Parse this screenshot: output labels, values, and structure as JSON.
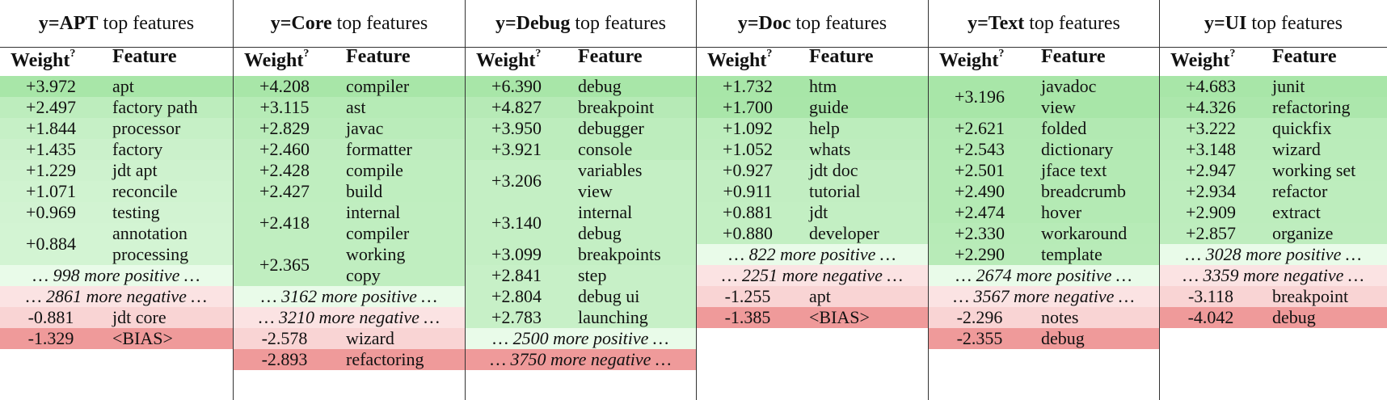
{
  "colors": {
    "pos_strong": "#a8e6a8",
    "pos_light": "#e9fbe9",
    "neg_light": "#fbe3e3",
    "neg_strong": "#ef9a9a"
  },
  "panels": [
    {
      "title_bold": "y=APT",
      "title_rest": " top features",
      "weight_header": "Weight",
      "weight_header_sup": "?",
      "feature_header": "Feature",
      "rows": [
        {
          "weight": "+3.972",
          "feature": [
            "apt"
          ]
        },
        {
          "weight": "+2.497",
          "feature": [
            "factory path"
          ]
        },
        {
          "weight": "+1.844",
          "feature": [
            "processor"
          ]
        },
        {
          "weight": "+1.435",
          "feature": [
            "factory"
          ]
        },
        {
          "weight": "+1.229",
          "feature": [
            "jdt apt"
          ]
        },
        {
          "weight": "+1.071",
          "feature": [
            "reconcile"
          ]
        },
        {
          "weight": "+0.969",
          "feature": [
            "testing"
          ]
        },
        {
          "weight": "+0.884",
          "feature": [
            "annotation",
            "processing"
          ]
        },
        {
          "more": "… 998 more positive …"
        },
        {
          "more": "… 2861 more negative …"
        },
        {
          "weight": "-0.881",
          "feature": [
            "jdt core"
          ]
        },
        {
          "weight": "-1.329",
          "feature": [
            "<BIAS>"
          ]
        }
      ]
    },
    {
      "title_bold": "y=Core",
      "title_rest": " top features",
      "weight_header": "Weight",
      "weight_header_sup": "?",
      "feature_header": "Feature",
      "rows": [
        {
          "weight": "+4.208",
          "feature": [
            "compiler"
          ]
        },
        {
          "weight": "+3.115",
          "feature": [
            "ast"
          ]
        },
        {
          "weight": "+2.829",
          "feature": [
            "javac"
          ]
        },
        {
          "weight": "+2.460",
          "feature": [
            "formatter"
          ]
        },
        {
          "weight": "+2.428",
          "feature": [
            "compile"
          ]
        },
        {
          "weight": "+2.427",
          "feature": [
            "build"
          ]
        },
        {
          "weight": "+2.418",
          "feature": [
            "internal",
            "compiler"
          ]
        },
        {
          "weight": "+2.365",
          "feature": [
            "working",
            "copy"
          ]
        },
        {
          "more": "… 3162 more positive …"
        },
        {
          "more": "… 3210 more negative …"
        },
        {
          "weight": "-2.578",
          "feature": [
            "wizard"
          ]
        },
        {
          "weight": "-2.893",
          "feature": [
            "refactoring"
          ]
        }
      ]
    },
    {
      "title_bold": "y=Debug",
      "title_rest": " top features",
      "weight_header": "Weight",
      "weight_header_sup": "?",
      "feature_header": "Feature",
      "rows": [
        {
          "weight": "+6.390",
          "feature": [
            "debug"
          ]
        },
        {
          "weight": "+4.827",
          "feature": [
            "breakpoint"
          ]
        },
        {
          "weight": "+3.950",
          "feature": [
            "debugger"
          ]
        },
        {
          "weight": "+3.921",
          "feature": [
            "console"
          ]
        },
        {
          "weight": "+3.206",
          "feature": [
            "variables",
            "view"
          ]
        },
        {
          "weight": "+3.140",
          "feature": [
            "internal",
            "debug"
          ]
        },
        {
          "weight": "+3.099",
          "feature": [
            "breakpoints"
          ]
        },
        {
          "weight": "+2.841",
          "feature": [
            "step"
          ]
        },
        {
          "weight": "+2.804",
          "feature": [
            "debug ui"
          ]
        },
        {
          "weight": "+2.783",
          "feature": [
            "launching"
          ]
        },
        {
          "more": "… 2500 more positive …"
        },
        {
          "more": "… 3750 more negative …"
        }
      ]
    },
    {
      "title_bold": "y=Doc",
      "title_rest": " top features",
      "weight_header": "Weight",
      "weight_header_sup": "?",
      "feature_header": "Feature",
      "rows": [
        {
          "weight": "+1.732",
          "feature": [
            "htm"
          ]
        },
        {
          "weight": "+1.700",
          "feature": [
            "guide"
          ]
        },
        {
          "weight": "+1.092",
          "feature": [
            "help"
          ]
        },
        {
          "weight": "+1.052",
          "feature": [
            "whats"
          ]
        },
        {
          "weight": "+0.927",
          "feature": [
            "jdt doc"
          ]
        },
        {
          "weight": "+0.911",
          "feature": [
            "tutorial"
          ]
        },
        {
          "weight": "+0.881",
          "feature": [
            "jdt"
          ]
        },
        {
          "weight": "+0.880",
          "feature": [
            "developer"
          ]
        },
        {
          "more": "… 822 more positive …"
        },
        {
          "more": "… 2251 more negative …"
        },
        {
          "weight": "-1.255",
          "feature": [
            "apt"
          ]
        },
        {
          "weight": "-1.385",
          "feature": [
            "<BIAS>"
          ]
        }
      ]
    },
    {
      "title_bold": "y=Text",
      "title_rest": " top features",
      "weight_header": "Weight",
      "weight_header_sup": "?",
      "feature_header": "Feature",
      "rows": [
        {
          "weight": "+3.196",
          "feature": [
            "javadoc",
            "view"
          ]
        },
        {
          "weight": "+2.621",
          "feature": [
            "folded"
          ]
        },
        {
          "weight": "+2.543",
          "feature": [
            "dictionary"
          ]
        },
        {
          "weight": "+2.501",
          "feature": [
            "jface text"
          ]
        },
        {
          "weight": "+2.490",
          "feature": [
            "breadcrumb"
          ]
        },
        {
          "weight": "+2.474",
          "feature": [
            "hover"
          ]
        },
        {
          "weight": "+2.330",
          "feature": [
            "workaround"
          ]
        },
        {
          "weight": "+2.290",
          "feature": [
            "template"
          ]
        },
        {
          "more": "… 2674 more positive …"
        },
        {
          "more": "… 3567 more negative …"
        },
        {
          "weight": "-2.296",
          "feature": [
            "notes"
          ]
        },
        {
          "weight": "-2.355",
          "feature": [
            "debug"
          ]
        }
      ]
    },
    {
      "title_bold": "y=UI",
      "title_rest": " top features",
      "weight_header": "Weight",
      "weight_header_sup": "?",
      "feature_header": "Feature",
      "rows": [
        {
          "weight": "+4.683",
          "feature": [
            "junit"
          ]
        },
        {
          "weight": "+4.326",
          "feature": [
            "refactoring"
          ]
        },
        {
          "weight": "+3.222",
          "feature": [
            "quickfix"
          ]
        },
        {
          "weight": "+3.148",
          "feature": [
            "wizard"
          ]
        },
        {
          "weight": "+2.947",
          "feature": [
            "working set"
          ]
        },
        {
          "weight": "+2.934",
          "feature": [
            "refactor"
          ]
        },
        {
          "weight": "+2.909",
          "feature": [
            "extract"
          ]
        },
        {
          "weight": "+2.857",
          "feature": [
            "organize"
          ]
        },
        {
          "more": "… 3028 more positive …"
        },
        {
          "more": "… 3359 more negative …"
        },
        {
          "weight": "-3.118",
          "feature": [
            "breakpoint"
          ]
        },
        {
          "weight": "-4.042",
          "feature": [
            "debug"
          ]
        }
      ]
    }
  ]
}
